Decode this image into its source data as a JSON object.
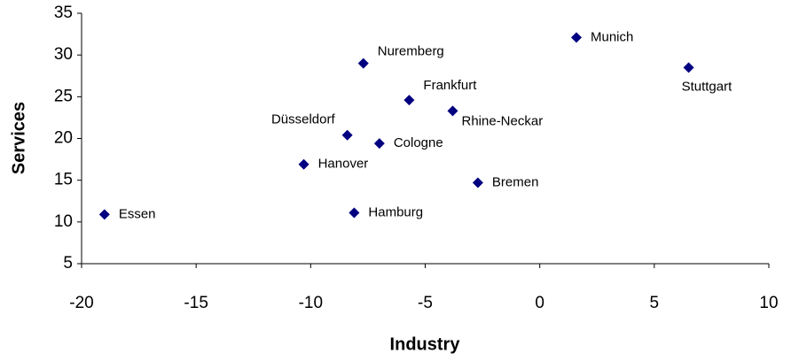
{
  "chart_data": {
    "type": "scatter",
    "x_label": "Industry",
    "y_label": "Services",
    "labels": [
      "Essen",
      "Hanover",
      "Hamburg",
      "Düsseldorf",
      "Nuremberg",
      "Cologne",
      "Frankfurt",
      "Rhine-Neckar",
      "Bremen",
      "Munich",
      "Stuttgart"
    ],
    "x": [
      -19.0,
      -10.3,
      -8.1,
      -8.4,
      -7.7,
      -7.0,
      -5.7,
      -3.8,
      -2.7,
      1.6,
      6.5
    ],
    "values": [
      10.9,
      16.9,
      11.1,
      20.4,
      29.0,
      19.4,
      24.6,
      23.3,
      14.7,
      32.1,
      28.5
    ],
    "color": "#000080",
    "xlim": [
      -20,
      10
    ],
    "xticks": [
      -20,
      -15,
      -10,
      -5,
      0,
      5,
      10
    ],
    "ylim": [
      5,
      35
    ],
    "yticks": [
      5,
      10,
      15,
      20,
      25,
      30,
      35
    ],
    "grid": false
  }
}
